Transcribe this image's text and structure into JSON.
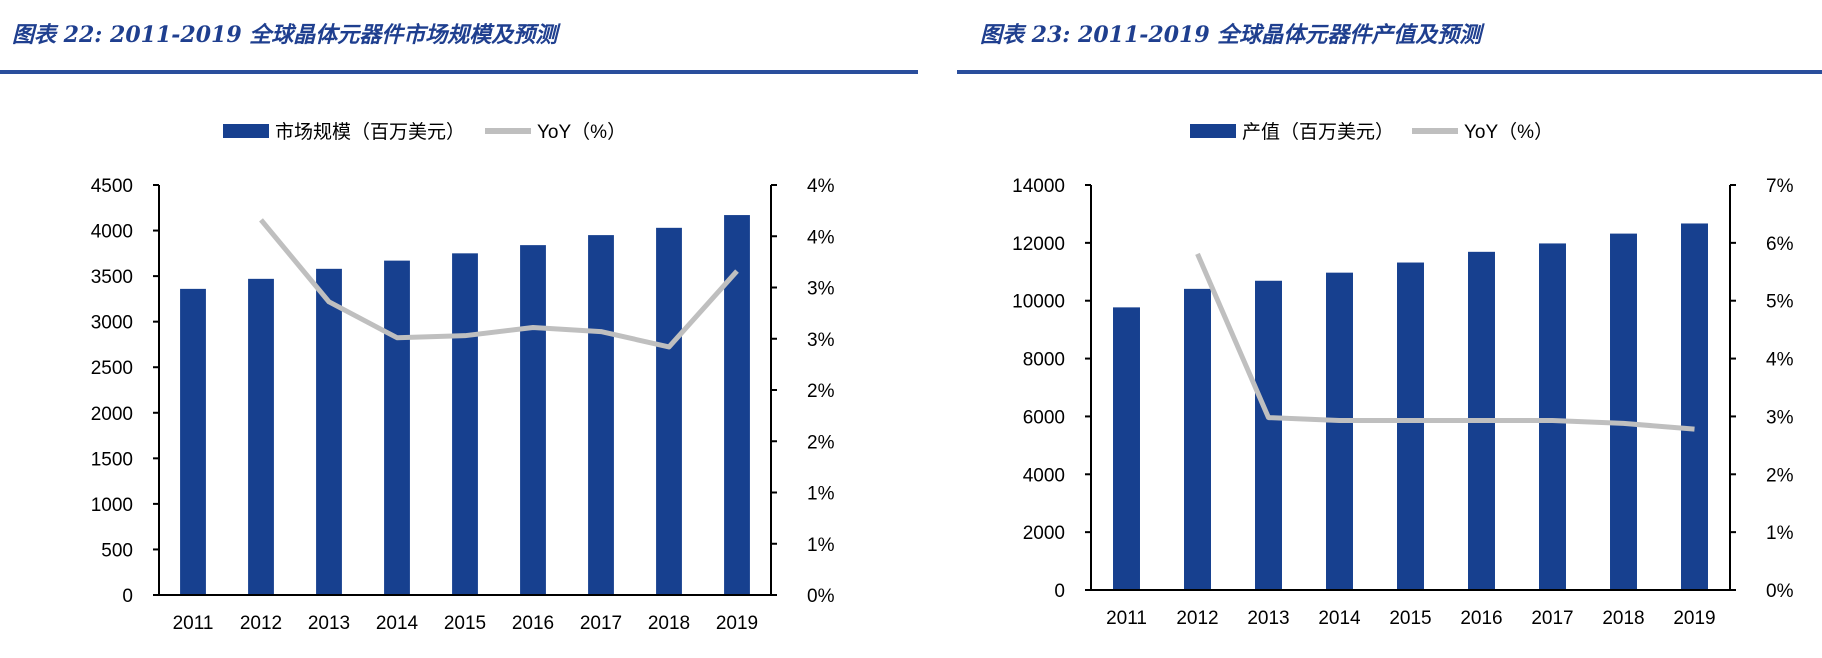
{
  "colors": {
    "bar": "#17408F",
    "line": "#BFBFBF",
    "title": "#1F3F8F",
    "rule": "#2A4E9C"
  },
  "chart_data": [
    {
      "type": "bar+line",
      "title": "图表 22: 2011-2019 全球晶体元器件市场规模及预测",
      "categories": [
        "2011",
        "2012",
        "2013",
        "2014",
        "2015",
        "2016",
        "2017",
        "2018",
        "2019"
      ],
      "series": [
        {
          "name": "市场规模（百万美元）",
          "type": "bar",
          "axis": "left",
          "values": [
            3360,
            3470,
            3580,
            3670,
            3750,
            3840,
            3950,
            4030,
            4170
          ]
        },
        {
          "name": "YoY（%）",
          "type": "line",
          "axis": "right",
          "values": [
            null,
            3.66,
            2.86,
            2.51,
            2.53,
            2.61,
            2.57,
            2.42,
            3.16
          ]
        }
      ],
      "ylim_left": [
        0,
        4500
      ],
      "yticks_left": [
        "0",
        "500",
        "1000",
        "1500",
        "2000",
        "2500",
        "3000",
        "3500",
        "4000",
        "4500"
      ],
      "ylim_right": [
        0,
        4
      ],
      "yticks_right": [
        "0%",
        "1%",
        "1%",
        "2%",
        "2%",
        "3%",
        "3%",
        "4%",
        "4%"
      ],
      "legend": "top",
      "grid": false
    },
    {
      "type": "bar+line",
      "title": "图表 23: 2011-2019 全球晶体元器件产值及预测",
      "categories": [
        "2011",
        "2012",
        "2013",
        "2014",
        "2015",
        "2016",
        "2017",
        "2018",
        "2019"
      ],
      "series": [
        {
          "name": "产值（百万美元）",
          "type": "bar",
          "axis": "left",
          "values": [
            9770,
            10410,
            10690,
            10970,
            11320,
            11690,
            11980,
            12320,
            12670
          ]
        },
        {
          "name": "YoY（%）",
          "type": "line",
          "axis": "right",
          "values": [
            null,
            5.81,
            2.98,
            2.93,
            2.93,
            2.93,
            2.93,
            2.88,
            2.78
          ]
        }
      ],
      "ylim_left": [
        0,
        14000
      ],
      "yticks_left": [
        "0",
        "2000",
        "4000",
        "6000",
        "8000",
        "10000",
        "12000",
        "14000"
      ],
      "ylim_right": [
        0,
        7
      ],
      "yticks_right": [
        "0%",
        "1%",
        "2%",
        "3%",
        "4%",
        "5%",
        "6%",
        "7%"
      ],
      "legend": "top",
      "grid": false
    }
  ]
}
